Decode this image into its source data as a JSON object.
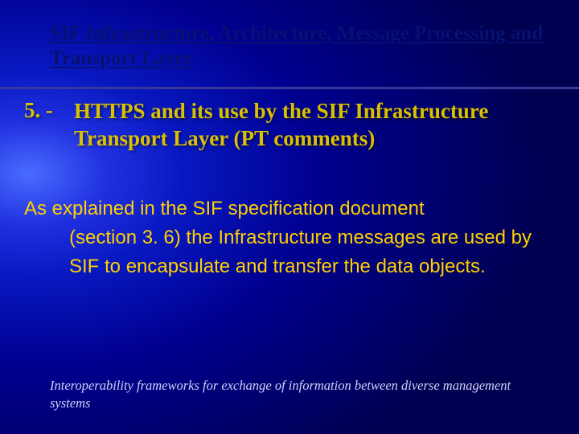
{
  "colors": {
    "title_color": "#081070",
    "divider_color": "#38389a",
    "heading_color": "#dac000",
    "body_color": "#ffd000",
    "footer_color": "#d0d0f8"
  },
  "title": "SIF Infrastructure, Architecture, Message Processing and Transport Layer",
  "section": {
    "number": "5. -",
    "heading": "HTTPS and its use by the SIF Infrastructure Transport Layer (PT comments)"
  },
  "body": {
    "first_line": "As explained in the SIF specification document",
    "rest": "(section 3. 6) the Infrastructure messages are used by SIF to encapsulate and transfer the data objects."
  },
  "footer": "Interoperability frameworks for exchange of information between diverse management systems"
}
